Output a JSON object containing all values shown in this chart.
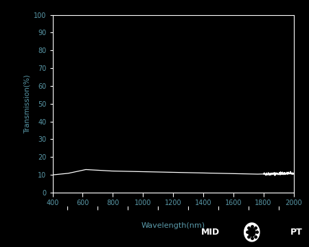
{
  "background_color": "#000000",
  "text_color": "#5a9aaa",
  "line_color": "#ffffff",
  "xlabel": "Wavelength(nm)",
  "ylabel": "Transmission(%)",
  "xlim": [
    400,
    2000
  ],
  "ylim": [
    0,
    100
  ],
  "yticks": [
    0,
    10,
    20,
    30,
    40,
    50,
    60,
    70,
    80,
    90,
    100
  ],
  "xticks_top": [
    400,
    600,
    800,
    1000,
    1200,
    1400,
    1600,
    1800,
    2000
  ],
  "xticks_bottom": [
    500,
    700,
    900,
    1100,
    1300,
    1500,
    1700,
    1900
  ],
  "axis_color": "#ffffff",
  "tick_color": "#ffffff",
  "figsize": [
    4.5,
    3.59
  ],
  "dpi": 100
}
